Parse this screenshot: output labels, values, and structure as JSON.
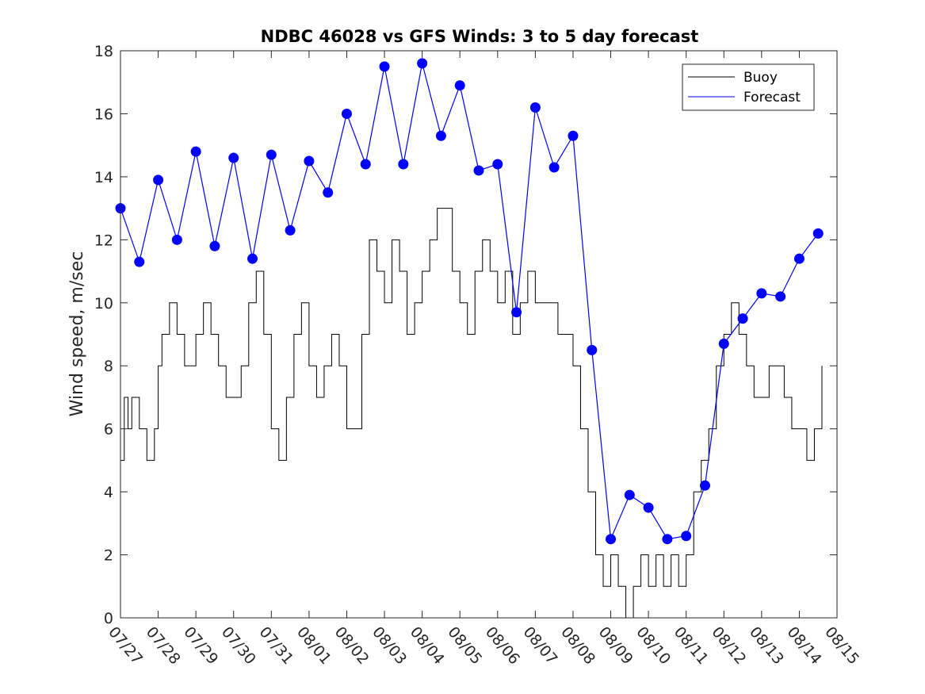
{
  "chart_data": {
    "type": "line",
    "title": "NDBC 46028 vs GFS Winds: 3 to 5 day forecast",
    "xlabel": "",
    "ylabel": "Wind speed, m/sec",
    "xlim": [
      0,
      19
    ],
    "ylim": [
      0,
      18
    ],
    "yticks": [
      0,
      2,
      4,
      6,
      8,
      10,
      12,
      14,
      16,
      18
    ],
    "xtick_labels": [
      "07/27",
      "07/28",
      "07/29",
      "07/30",
      "07/31",
      "08/01",
      "08/02",
      "08/03",
      "08/04",
      "08/05",
      "08/06",
      "08/07",
      "08/08",
      "08/09",
      "08/10",
      "08/11",
      "08/12",
      "08/13",
      "08/14",
      "08/15"
    ],
    "legend": {
      "location": "top-right",
      "entries": [
        "Buoy",
        "Forecast"
      ]
    },
    "colors": {
      "buoy": "#000000",
      "forecast": "#0000ee",
      "markers": "#0000ff"
    },
    "series": [
      {
        "name": "Buoy",
        "x": [
          0,
          0.1,
          0.2,
          0.3,
          0.5,
          0.7,
          0.9,
          1.0,
          1.1,
          1.3,
          1.5,
          1.7,
          2.0,
          2.2,
          2.4,
          2.6,
          2.8,
          3.0,
          3.2,
          3.4,
          3.6,
          3.8,
          4.0,
          4.2,
          4.4,
          4.6,
          4.8,
          5.0,
          5.2,
          5.4,
          5.6,
          5.8,
          6.0,
          6.2,
          6.4,
          6.6,
          6.8,
          7.0,
          7.2,
          7.4,
          7.6,
          7.8,
          8.0,
          8.2,
          8.4,
          8.6,
          8.8,
          9.0,
          9.2,
          9.4,
          9.6,
          9.8,
          10.0,
          10.2,
          10.4,
          10.6,
          10.8,
          11.0,
          11.2,
          11.4,
          11.6,
          11.8,
          12.0,
          12.2,
          12.4,
          12.6,
          12.8,
          13.0,
          13.2,
          13.4,
          13.6,
          13.8,
          14.0,
          14.2,
          14.4,
          14.6,
          14.8,
          15.0,
          15.2,
          15.4,
          15.6,
          15.8,
          16.0,
          16.2,
          16.4,
          16.6,
          16.8,
          17.0,
          17.2,
          17.4,
          17.6,
          17.8,
          18.0,
          18.2,
          18.4,
          18.6
        ],
        "y": [
          5,
          7,
          6,
          7,
          6,
          5,
          6,
          8,
          9,
          10,
          9,
          8,
          9,
          10,
          9,
          8,
          7,
          7,
          8,
          10,
          11,
          9,
          6,
          5,
          7,
          9,
          10,
          8,
          7,
          8,
          9,
          8,
          6,
          6,
          9,
          12,
          11,
          10,
          12,
          11,
          9,
          10,
          11,
          12,
          13,
          13,
          11,
          10,
          9,
          11,
          12,
          11,
          10,
          11,
          9,
          10,
          11,
          10,
          10,
          10,
          9,
          9,
          8,
          6,
          4,
          2,
          1,
          2,
          1,
          0,
          1,
          2,
          1,
          2,
          1,
          2,
          1,
          2,
          4,
          5,
          6,
          8,
          9,
          10,
          9,
          8,
          7,
          7,
          8,
          8,
          7,
          6,
          6,
          5,
          6,
          8
        ]
      },
      {
        "name": "Forecast",
        "x": [
          0,
          0.5,
          1.0,
          1.5,
          2.0,
          2.5,
          3.0,
          3.5,
          4.0,
          4.5,
          5.0,
          5.5,
          6.0,
          6.5,
          7.0,
          7.5,
          8.0,
          8.5,
          9.0,
          9.5,
          10.0,
          10.5,
          11.0,
          11.5,
          12.0,
          12.5,
          13.0,
          13.5,
          14.0,
          14.5,
          15.0,
          15.5,
          16.0,
          16.5,
          17.0,
          17.5,
          18.0,
          18.5
        ],
        "y": [
          13.0,
          11.3,
          13.9,
          12.0,
          14.8,
          11.8,
          14.6,
          11.4,
          14.7,
          12.3,
          14.5,
          13.5,
          16.0,
          14.4,
          17.5,
          14.4,
          17.6,
          15.3,
          16.9,
          14.2,
          14.4,
          9.7,
          16.2,
          14.3,
          15.3,
          8.5,
          2.5,
          3.9,
          3.5,
          2.5,
          2.6,
          4.2,
          8.7,
          9.5,
          10.3,
          10.2,
          11.4,
          12.2
        ]
      }
    ]
  }
}
